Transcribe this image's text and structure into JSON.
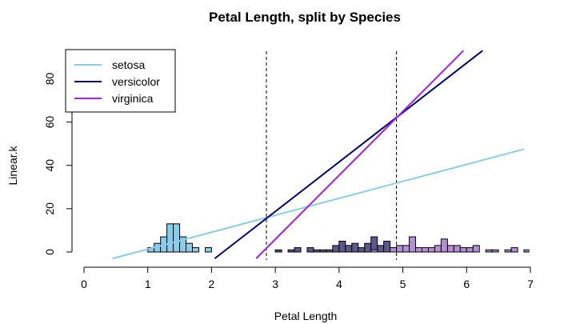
{
  "chart_data": {
    "type": "line",
    "title": "Petal Length, split by Species",
    "xlabel": "Petal Length",
    "ylabel": "Linear.k",
    "xlim": [
      0,
      7
    ],
    "ylim": [
      -3,
      93
    ],
    "xticks": [
      0,
      1,
      2,
      3,
      4,
      5,
      6,
      7
    ],
    "yticks": [
      0,
      20,
      40,
      60,
      80
    ],
    "grid": false,
    "legend_position": "top-left",
    "series": [
      {
        "name": "setosa",
        "color": "#87ceeb",
        "x": [
          0.45,
          6.9
        ],
        "y": [
          -3,
          47.5
        ]
      },
      {
        "name": "versicolor",
        "color": "#000080",
        "x": [
          2.05,
          6.25
        ],
        "y": [
          -3,
          93
        ]
      },
      {
        "name": "virginica",
        "color": "#a020f0",
        "x": [
          2.7,
          5.95
        ],
        "y": [
          -3,
          93
        ]
      }
    ],
    "reference_lines": {
      "style": "dashed",
      "color": "#000000",
      "x": [
        2.86,
        4.9
      ]
    },
    "histograms": [
      {
        "name": "setosa",
        "fill": "#87ceeb",
        "bin_width": 0.1,
        "bins": [
          [
            1.0,
            2
          ],
          [
            1.1,
            4
          ],
          [
            1.2,
            7
          ],
          [
            1.3,
            13
          ],
          [
            1.4,
            13
          ],
          [
            1.5,
            7
          ],
          [
            1.6,
            4
          ],
          [
            1.7,
            2
          ],
          [
            1.8,
            0
          ],
          [
            1.9,
            2
          ]
        ]
      },
      {
        "name": "versicolor",
        "fill": "#5a5a8c",
        "bin_width": 0.1,
        "bins": [
          [
            3.0,
            1
          ],
          [
            3.2,
            1
          ],
          [
            3.3,
            2
          ],
          [
            3.5,
            2
          ],
          [
            3.6,
            1
          ],
          [
            3.7,
            1
          ],
          [
            3.8,
            1
          ],
          [
            3.9,
            3
          ],
          [
            4.0,
            5
          ],
          [
            4.1,
            3
          ],
          [
            4.2,
            4
          ],
          [
            4.3,
            2
          ],
          [
            4.4,
            4
          ],
          [
            4.5,
            7
          ],
          [
            4.6,
            3
          ],
          [
            4.7,
            5
          ],
          [
            4.8,
            2
          ],
          [
            4.9,
            2
          ],
          [
            5.0,
            1
          ],
          [
            5.1,
            1
          ]
        ]
      },
      {
        "name": "virginica",
        "fill": "#b68ed6",
        "bin_width": 0.1,
        "bins": [
          [
            4.5,
            1
          ],
          [
            4.8,
            2
          ],
          [
            4.9,
            3
          ],
          [
            5.0,
            3
          ],
          [
            5.1,
            7
          ],
          [
            5.2,
            2
          ],
          [
            5.3,
            2
          ],
          [
            5.4,
            2
          ],
          [
            5.5,
            3
          ],
          [
            5.6,
            6
          ],
          [
            5.7,
            3
          ],
          [
            5.8,
            3
          ],
          [
            5.9,
            2
          ],
          [
            6.0,
            2
          ],
          [
            6.1,
            3
          ],
          [
            6.3,
            1
          ],
          [
            6.4,
            1
          ],
          [
            6.6,
            1
          ],
          [
            6.7,
            2
          ],
          [
            6.9,
            1
          ]
        ]
      }
    ]
  }
}
